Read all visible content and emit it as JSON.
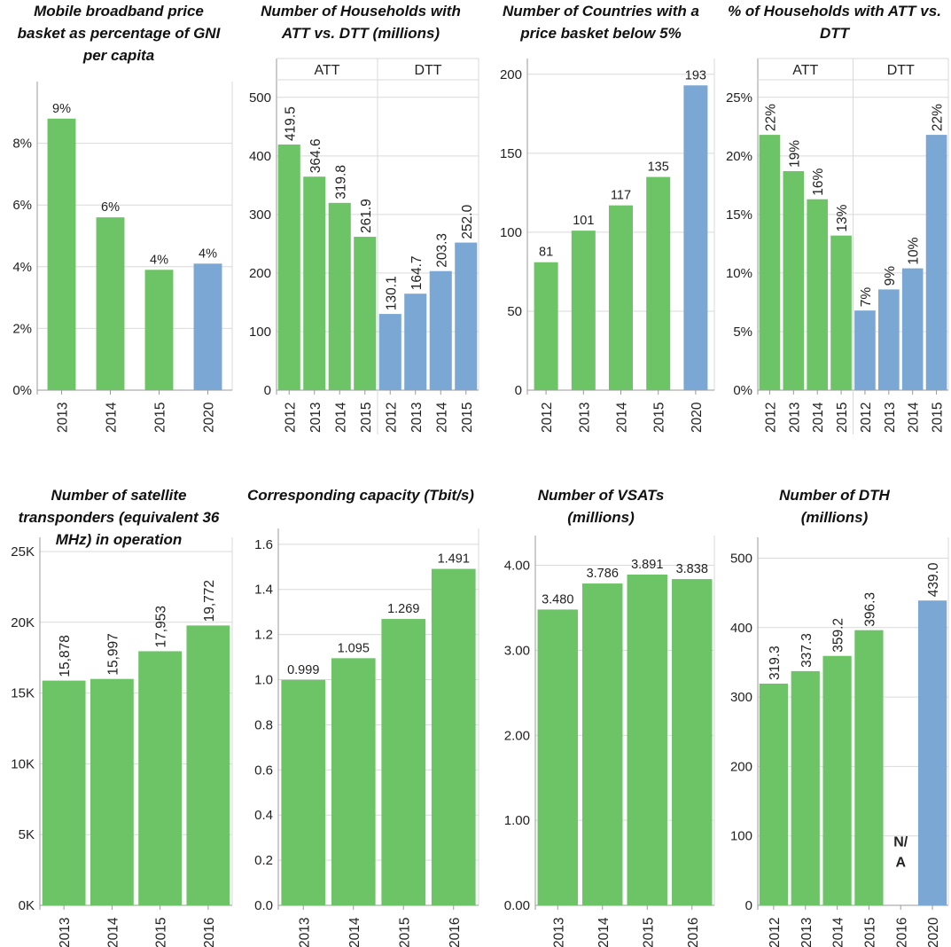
{
  "colors": {
    "green": "#6DC466",
    "blue": "#7AA7D3",
    "grid": "#d9d9d9",
    "axis": "#9a9a9a",
    "text": "#222222"
  },
  "panels": [
    {
      "title_lines": [
        "Mobile broadband price",
        "basket as percentage of GNI",
        "per capita"
      ],
      "chart_data": {
        "type": "bar",
        "categories": [
          "2013",
          "2014",
          "2015",
          "2020"
        ],
        "values": [
          8.8,
          5.6,
          3.9,
          4.1
        ],
        "value_labels": [
          "9%",
          "6%",
          "4%",
          "4%"
        ],
        "colors": [
          "green",
          "green",
          "green",
          "blue"
        ],
        "ylim": [
          0,
          10
        ],
        "yticks": [
          0,
          2,
          4,
          6,
          8
        ],
        "ytick_labels": [
          "0%",
          "2%",
          "4%",
          "6%",
          "8%"
        ],
        "label_orientation": "horizontal"
      }
    },
    {
      "title_lines": [
        "Number of Households with",
        "ATT vs. DTT (millions)"
      ],
      "chart_data": {
        "type": "bar",
        "facets": [
          {
            "name": "ATT",
            "categories": [
              "2012",
              "2013",
              "2014",
              "2015"
            ],
            "values": [
              419.5,
              364.6,
              319.8,
              261.9
            ],
            "value_labels": [
              "419.5",
              "364.6",
              "319.8",
              "261.9"
            ],
            "color": "green"
          },
          {
            "name": "DTT",
            "categories": [
              "2012",
              "2013",
              "2014",
              "2015"
            ],
            "values": [
              130.1,
              164.7,
              203.3,
              252.0
            ],
            "value_labels": [
              "130.1",
              "164.7",
              "203.3",
              "252.0"
            ],
            "color": "blue"
          }
        ],
        "ylim": [
          0,
          530
        ],
        "yticks": [
          0,
          100,
          200,
          300,
          400,
          500
        ],
        "ytick_labels": [
          "0",
          "100",
          "200",
          "300",
          "400",
          "500"
        ],
        "label_orientation": "vertical"
      }
    },
    {
      "title_lines": [
        "Number of Countries with a",
        "price basket below 5%"
      ],
      "chart_data": {
        "type": "bar",
        "categories": [
          "2012",
          "2013",
          "2014",
          "2015",
          "2020"
        ],
        "values": [
          81,
          101,
          117,
          135,
          193
        ],
        "value_labels": [
          "81",
          "101",
          "117",
          "135",
          "193"
        ],
        "colors": [
          "green",
          "green",
          "green",
          "green",
          "blue"
        ],
        "ylim": [
          0,
          210
        ],
        "yticks": [
          0,
          50,
          100,
          150,
          200
        ],
        "ytick_labels": [
          "0",
          "50",
          "100",
          "150",
          "200"
        ],
        "label_orientation": "horizontal"
      }
    },
    {
      "title_lines": [
        "% of Households with ATT vs.",
        "DTT"
      ],
      "chart_data": {
        "type": "bar",
        "facets": [
          {
            "name": "ATT",
            "categories": [
              "2012",
              "2013",
              "2014",
              "2015"
            ],
            "values": [
              21.8,
              18.7,
              16.3,
              13.2
            ],
            "value_labels": [
              "22%",
              "19%",
              "16%",
              "13%"
            ],
            "color": "green"
          },
          {
            "name": "DTT",
            "categories": [
              "2012",
              "2013",
              "2014",
              "2015"
            ],
            "values": [
              6.8,
              8.6,
              10.4,
              21.8
            ],
            "value_labels": [
              "7%",
              "9%",
              "10%",
              "22%"
            ],
            "color": "blue"
          }
        ],
        "ylim": [
          0,
          26.5
        ],
        "yticks": [
          0,
          5,
          10,
          15,
          20,
          25
        ],
        "ytick_labels": [
          "0%",
          "5%",
          "10%",
          "15%",
          "20%",
          "25%"
        ],
        "label_orientation": "vertical"
      }
    },
    {
      "title_lines": [
        "Number of satellite",
        "transponders (equivalent 36",
        "MHz) in operation"
      ],
      "chart_data": {
        "type": "bar",
        "categories": [
          "2013",
          "2014",
          "2015",
          "2016"
        ],
        "values": [
          15878,
          15997,
          17953,
          19772
        ],
        "value_labels": [
          "15,878",
          "15,997",
          "17,953",
          "19,772"
        ],
        "colors": [
          "green",
          "green",
          "green",
          "green"
        ],
        "ylim": [
          0,
          26000
        ],
        "yticks": [
          0,
          5000,
          10000,
          15000,
          20000,
          25000
        ],
        "ytick_labels": [
          "0K",
          "5K",
          "10K",
          "15K",
          "20K",
          "25K"
        ],
        "label_orientation": "vertical"
      }
    },
    {
      "title_lines": [
        "Corresponding capacity (Tbit/s)"
      ],
      "chart_data": {
        "type": "bar",
        "categories": [
          "2013",
          "2014",
          "2015",
          "2016"
        ],
        "values": [
          0.999,
          1.095,
          1.269,
          1.491
        ],
        "value_labels": [
          "0.999",
          "1.095",
          "1.269",
          "1.491"
        ],
        "colors": [
          "green",
          "green",
          "green",
          "green"
        ],
        "ylim": [
          0,
          1.67
        ],
        "yticks": [
          0,
          0.2,
          0.4,
          0.6,
          0.8,
          1.0,
          1.2,
          1.4,
          1.6
        ],
        "ytick_labels": [
          "0.0",
          "0.2",
          "0.4",
          "0.6",
          "0.8",
          "1.0",
          "1.2",
          "1.4",
          "1.6"
        ],
        "label_orientation": "horizontal"
      }
    },
    {
      "title_lines": [
        "Number of VSATs",
        "(millions)"
      ],
      "chart_data": {
        "type": "bar",
        "categories": [
          "2013",
          "2014",
          "2015",
          "2016"
        ],
        "values": [
          3.48,
          3.786,
          3.891,
          3.838
        ],
        "value_labels": [
          "3.480",
          "3.786",
          "3.891",
          "3.838"
        ],
        "colors": [
          "green",
          "green",
          "green",
          "green"
        ],
        "ylim": [
          0,
          4.35
        ],
        "yticks": [
          0,
          1,
          2,
          3,
          4
        ],
        "ytick_labels": [
          "0.00",
          "1.00",
          "2.00",
          "3.00",
          "4.00"
        ],
        "label_orientation": "horizontal"
      }
    },
    {
      "title_lines": [
        "Number of DTH",
        "(millions)"
      ],
      "chart_data": {
        "type": "bar",
        "categories": [
          "2012",
          "2013",
          "2014",
          "2015",
          "2016",
          "2020"
        ],
        "values": [
          319.3,
          337.3,
          359.2,
          396.3,
          null,
          439.0
        ],
        "value_labels": [
          "319.3",
          "337.3",
          "359.2",
          "396.3",
          "N/A",
          "439.0"
        ],
        "colors": [
          "green",
          "green",
          "green",
          "green",
          "green",
          "blue"
        ],
        "ylim": [
          0,
          530
        ],
        "yticks": [
          0,
          100,
          200,
          300,
          400,
          500
        ],
        "ytick_labels": [
          "0",
          "100",
          "200",
          "300",
          "400",
          "500"
        ],
        "label_orientation": "vertical"
      }
    }
  ]
}
